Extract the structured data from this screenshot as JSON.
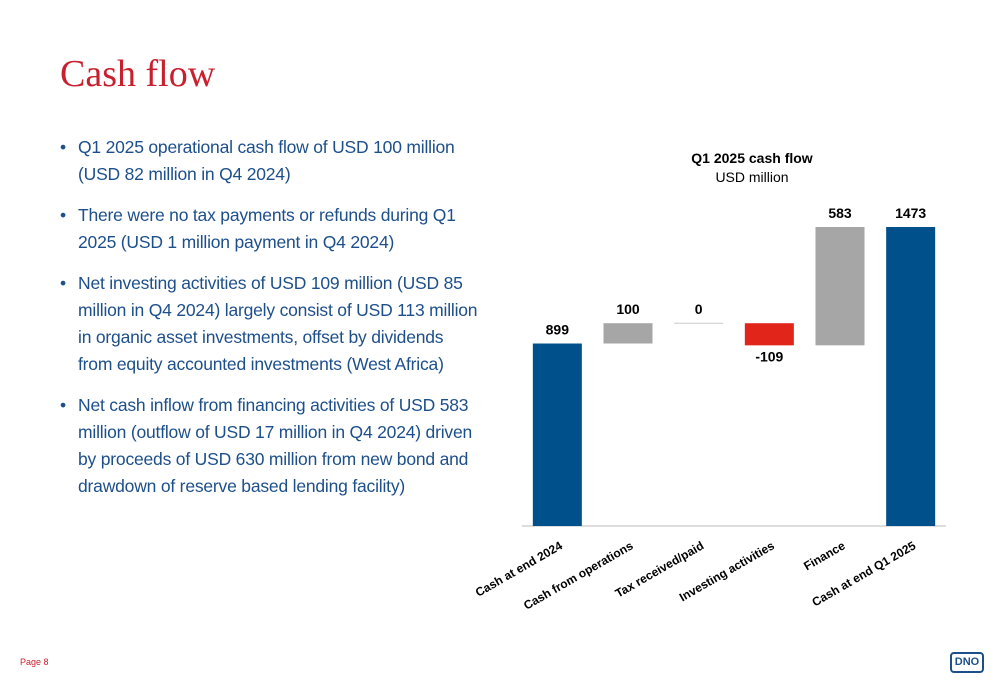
{
  "header": {
    "title": "Cash flow"
  },
  "bullets": [
    "Q1 2025 operational cash flow of USD 100 million (USD 82 million in Q4 2024)",
    "There were no tax payments or refunds during Q1 2025 (USD 1 million payment in Q4 2024)",
    "Net investing activities of USD 109 million (USD 85 million in Q4 2024) largely consist of USD 113 million in organic asset investments, offset by dividends from equity accounted investments (West Africa)",
    "Net cash inflow from financing activities of USD 583 million (outflow of USD 17 million in Q4 2024) driven by proceeds of USD 630 million from new bond and drawdown of reserve based lending facility)"
  ],
  "footer": {
    "page": "Page 8",
    "logo": "DNO"
  },
  "chart_data": {
    "type": "waterfall",
    "title": "Q1 2025 cash flow",
    "subtitle": "USD million",
    "categories": [
      "Cash at end 2024",
      "Cash from operations",
      "Tax received/paid",
      "Investing activities",
      "Finance",
      "Cash at end Q1 2025"
    ],
    "values": [
      899,
      100,
      0,
      -109,
      583,
      1473
    ],
    "totals": [
      true,
      false,
      false,
      false,
      false,
      true
    ],
    "colors": {
      "total": "#00508c",
      "increase": "#a6a6a6",
      "decrease": "#e1251b"
    }
  }
}
